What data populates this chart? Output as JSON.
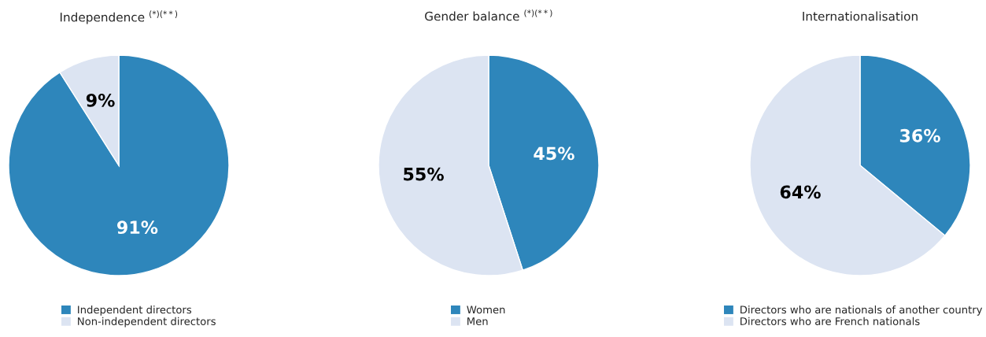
{
  "chart_data": [
    {
      "type": "pie",
      "title": "Independence $^{(*)(**)}$",
      "categories": [
        "Independent directors",
        "Non-independent directors"
      ],
      "values": [
        91,
        9
      ],
      "value_labels": [
        "91%",
        "9%"
      ],
      "colors": [
        "#2e86bb",
        "#dce4f2"
      ],
      "legend": "bottom"
    },
    {
      "type": "pie",
      "title": "Gender balance $^{(*)(**)}$",
      "categories": [
        "Women",
        "Men"
      ],
      "values": [
        45,
        55
      ],
      "value_labels": [
        "45%",
        "55%"
      ],
      "colors": [
        "#2e86bb",
        "#dce4f2"
      ],
      "legend": "bottom"
    },
    {
      "type": "pie",
      "title": "Internationalisation",
      "categories": [
        "Directors who are nationals of another country",
        "Directors who are French nationals"
      ],
      "values": [
        36,
        64
      ],
      "value_labels": [
        "36%",
        "64%"
      ],
      "colors": [
        "#2e86bb",
        "#dce4f2"
      ],
      "legend": "bottom"
    }
  ]
}
